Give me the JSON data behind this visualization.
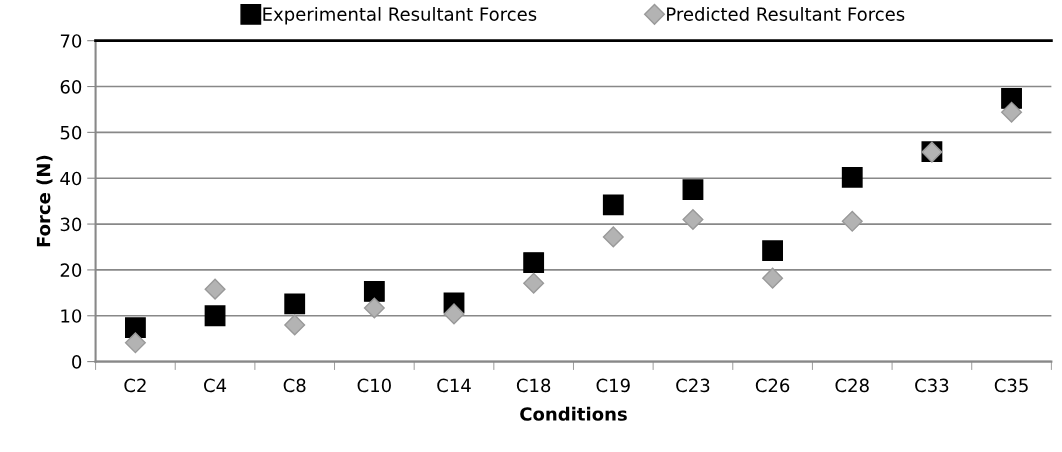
{
  "chart_data": {
    "type": "scatter",
    "xlabel": "Conditions",
    "ylabel": "Force (N)",
    "categories": [
      "C2",
      "C4",
      "C8",
      "C10",
      "C14",
      "C18",
      "C19",
      "C23",
      "C26",
      "C28",
      "C33",
      "C35"
    ],
    "series": [
      {
        "name": "Experimental Resultant Forces",
        "color": "#000000",
        "marker": "square",
        "values": [
          7.4,
          10.0,
          12.6,
          15.3,
          12.8,
          21.6,
          34.2,
          37.5,
          24.2,
          40.2,
          45.8,
          57.4
        ]
      },
      {
        "name": "Predicted Resultant Forces",
        "color": "#b3b3b3",
        "marker": "diamond",
        "values": [
          4.1,
          15.8,
          8.0,
          11.7,
          10.4,
          17.1,
          27.2,
          31.0,
          18.2,
          30.6,
          45.7,
          54.4
        ]
      }
    ],
    "ylim": [
      0,
      70
    ],
    "yticks": [
      0,
      10,
      20,
      30,
      40,
      50,
      60,
      70
    ],
    "grid": "y",
    "legend": "top"
  }
}
